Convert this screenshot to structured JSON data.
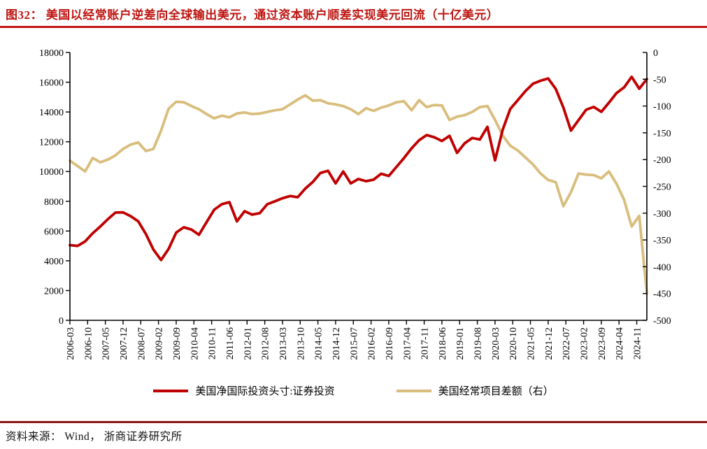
{
  "title": "图32：  美国以经常账户逆差向全球输出美元，通过资本账户顺差实现美元回流（十亿美元）",
  "source": "资料来源：  Wind，  浙商证券研究所",
  "colors": {
    "title_text": "#BE1510",
    "title_rule": "#C51414",
    "footer_rule": "#8E1414",
    "axis": "#000000",
    "red_series": "#C00000",
    "tan_series": "#D9BD7C"
  },
  "legend": [
    {
      "label": "美国净国际投资头寸:证券投资",
      "color": "#C00000"
    },
    {
      "label": "美国经常项目差额（右）",
      "color": "#D9BD7C"
    }
  ],
  "chart_data": {
    "type": "line",
    "grid": false,
    "legend_position": "bottom",
    "x": [
      "2006-03",
      "2006-06",
      "2006-09",
      "2006-12",
      "2007-03",
      "2007-06",
      "2007-09",
      "2007-12",
      "2008-03",
      "2008-06",
      "2008-09",
      "2008-12",
      "2009-03",
      "2009-06",
      "2009-09",
      "2009-12",
      "2010-03",
      "2010-06",
      "2010-09",
      "2010-12",
      "2011-03",
      "2011-06",
      "2011-09",
      "2011-12",
      "2012-03",
      "2012-06",
      "2012-09",
      "2012-12",
      "2013-03",
      "2013-06",
      "2013-09",
      "2013-12",
      "2014-03",
      "2014-06",
      "2014-09",
      "2014-12",
      "2015-03",
      "2015-06",
      "2015-09",
      "2015-12",
      "2016-03",
      "2016-06",
      "2016-09",
      "2016-12",
      "2017-03",
      "2017-06",
      "2017-09",
      "2017-12",
      "2018-03",
      "2018-06",
      "2018-09",
      "2018-12",
      "2019-03",
      "2019-06",
      "2019-09",
      "2019-12",
      "2020-03",
      "2020-06",
      "2020-09",
      "2020-12",
      "2021-03",
      "2021-06",
      "2021-09",
      "2021-12",
      "2022-03",
      "2022-06",
      "2022-09",
      "2022-12",
      "2023-03",
      "2023-06",
      "2023-09",
      "2023-12",
      "2024-03",
      "2024-06",
      "2024-09",
      "2024-12",
      "2025-03"
    ],
    "series": [
      {
        "name": "美国净国际投资头寸:证券投资",
        "axis": "left",
        "color": "#C00000",
        "values": [
          5050,
          5000,
          5300,
          5850,
          6300,
          6800,
          7240,
          7250,
          7000,
          6650,
          5800,
          4750,
          4050,
          4800,
          5900,
          6250,
          6100,
          5750,
          6600,
          7430,
          7800,
          7940,
          6650,
          7330,
          7100,
          7200,
          7800,
          8000,
          8200,
          8350,
          8270,
          8850,
          9300,
          9900,
          10050,
          9200,
          10000,
          9200,
          9500,
          9350,
          9450,
          9850,
          9700,
          10300,
          10900,
          11550,
          12100,
          12450,
          12300,
          12050,
          12400,
          11250,
          11900,
          12250,
          12150,
          13000,
          10750,
          12800,
          14200,
          14800,
          15400,
          15900,
          16100,
          16250,
          15550,
          14300,
          12750,
          13450,
          14150,
          14340,
          14010,
          14620,
          15270,
          15650,
          16360,
          15560,
          16210
        ]
      },
      {
        "name": "美国经常项目差额（右）",
        "axis": "right",
        "color": "#D9BD7C",
        "values": [
          -202,
          -212,
          -222,
          -197,
          -205,
          -200,
          -192,
          -180,
          -172,
          -168,
          -184,
          -180,
          -146,
          -105,
          -92,
          -93,
          -100,
          -106,
          -115,
          -123,
          -118,
          -121,
          -114,
          -112,
          -115,
          -114,
          -111,
          -108,
          -106,
          -97,
          -88,
          -80,
          -90,
          -89,
          -95,
          -97,
          -100,
          -106,
          -115,
          -104,
          -109,
          -103,
          -99,
          -93,
          -91,
          -108,
          -89,
          -102,
          -98,
          -99,
          -126,
          -120,
          -117,
          -111,
          -102,
          -100,
          -126,
          -155,
          -174,
          -183,
          -196,
          -209,
          -226,
          -238,
          -242,
          -287,
          -261,
          -226,
          -228,
          -229,
          -235,
          -222,
          -245,
          -275,
          -325,
          -305,
          -450
        ]
      }
    ],
    "x_tick_labels": [
      "2006-03",
      "2006-10",
      "2007-05",
      "2007-12",
      "2008-07",
      "2009-02",
      "2009-09",
      "2010-04",
      "2010-11",
      "2011-06",
      "2012-01",
      "2012-08",
      "2013-03",
      "2013-10",
      "2014-05",
      "2014-12",
      "2015-07",
      "2016-02",
      "2016-09",
      "2017-04",
      "2017-11",
      "2018-06",
      "2019-01",
      "2019-08",
      "2020-03",
      "2020-10",
      "2021-05",
      "2021-12",
      "2022-07",
      "2023-02",
      "2023-09",
      "2024-04",
      "2024-11"
    ],
    "left_axis": {
      "min": 0,
      "max": 18000,
      "step": 2000,
      "ticks": [
        "18000",
        "16000",
        "14000",
        "12000",
        "10000",
        "8000",
        "6000",
        "4000",
        "2000",
        "0"
      ]
    },
    "right_axis": {
      "min": -500,
      "max": 0,
      "step": 50,
      "ticks": [
        "0",
        "-50",
        "-100",
        "-150",
        "-200",
        "-250",
        "-300",
        "-350",
        "-400",
        "-450",
        "-500"
      ]
    }
  }
}
